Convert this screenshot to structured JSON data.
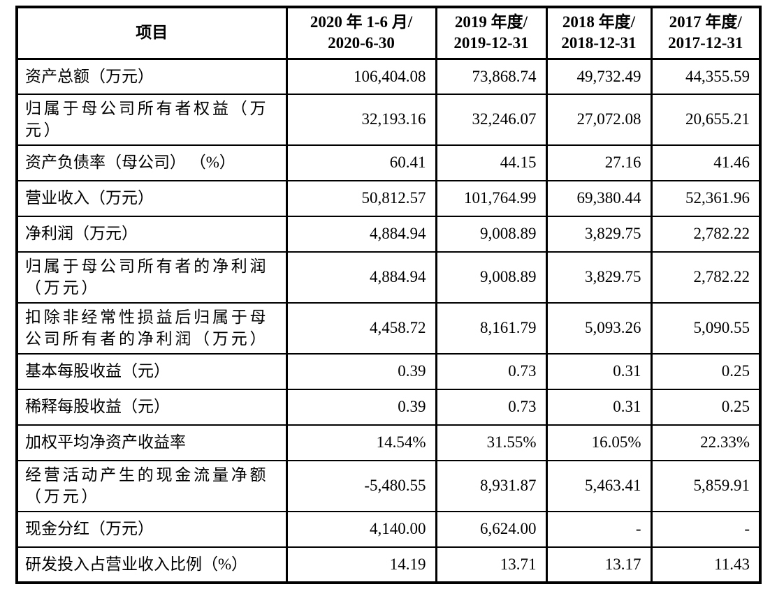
{
  "table": {
    "header": {
      "item_label": "项目",
      "columns": [
        "2020 年 1-6 月/\n2020-6-30",
        "2019 年度/\n2019-12-31",
        "2018 年度/\n2018-12-31",
        "2017 年度/\n2017-12-31"
      ]
    },
    "rows": [
      {
        "label": "资产总额（万元）",
        "values": [
          "106,404.08",
          "73,868.74",
          "49,732.49",
          "44,355.59"
        ]
      },
      {
        "label": "归属于母公司所有者权益（万\n元）",
        "values": [
          "32,193.16",
          "32,246.07",
          "27,072.08",
          "20,655.21"
        ]
      },
      {
        "label": "资产负债率（母公司） （%）",
        "values": [
          "60.41",
          "44.15",
          "27.16",
          "41.46"
        ]
      },
      {
        "label": "营业收入（万元）",
        "values": [
          "50,812.57",
          "101,764.99",
          "69,380.44",
          "52,361.96"
        ]
      },
      {
        "label": "净利润（万元）",
        "values": [
          "4,884.94",
          "9,008.89",
          "3,829.75",
          "2,782.22"
        ]
      },
      {
        "label": "归属于母公司所有者的净利润\n（万元）",
        "values": [
          "4,884.94",
          "9,008.89",
          "3,829.75",
          "2,782.22"
        ]
      },
      {
        "label": "扣除非经常性损益后归属于母\n公司所有者的净利润（万元）",
        "values": [
          "4,458.72",
          "8,161.79",
          "5,093.26",
          "5,090.55"
        ]
      },
      {
        "label": "基本每股收益（元）",
        "values": [
          "0.39",
          "0.73",
          "0.31",
          "0.25"
        ]
      },
      {
        "label": "稀释每股收益（元）",
        "values": [
          "0.39",
          "0.73",
          "0.31",
          "0.25"
        ]
      },
      {
        "label": "加权平均净资产收益率",
        "values": [
          "14.54%",
          "31.55%",
          "16.05%",
          "22.33%"
        ]
      },
      {
        "label": "经营活动产生的现金流量净额\n（万元）",
        "values": [
          "-5,480.55",
          "8,931.87",
          "5,463.41",
          "5,859.91"
        ]
      },
      {
        "label": "现金分红（万元）",
        "values": [
          "4,140.00",
          "6,624.00",
          "-",
          "-"
        ]
      },
      {
        "label": "研发投入占营业收入比例（%）",
        "values": [
          "14.19",
          "13.71",
          "13.17",
          "11.43"
        ]
      }
    ]
  },
  "colors": {
    "border": "#000000",
    "text": "#000000",
    "background": "#ffffff"
  }
}
